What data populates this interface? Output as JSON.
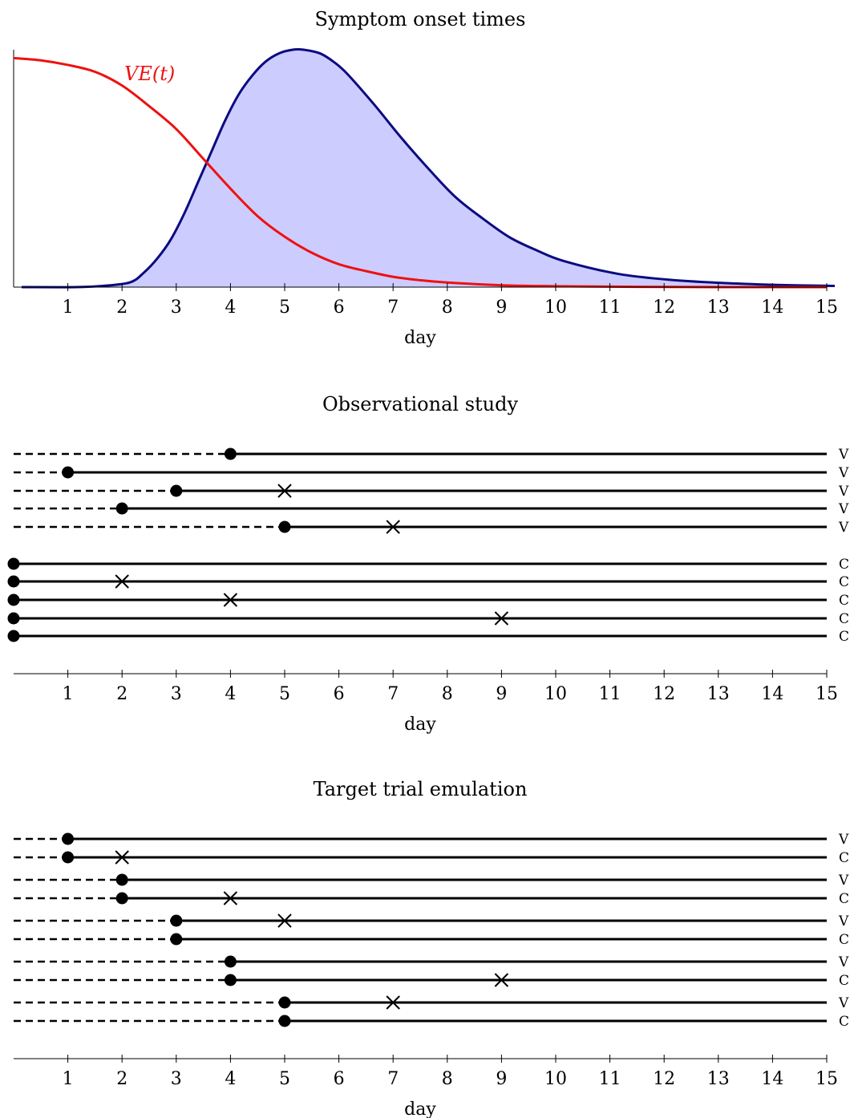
{
  "panels": [
    {
      "title": "Symptom onset times",
      "xlabel": "day",
      "ticks": [
        "1",
        "2",
        "3",
        "4",
        "5",
        "6",
        "7",
        "8",
        "9",
        "10",
        "11",
        "12",
        "13",
        "14",
        "15"
      ]
    },
    {
      "title": "Observational study",
      "xlabel": "day",
      "ticks": [
        "1",
        "2",
        "3",
        "4",
        "5",
        "6",
        "7",
        "8",
        "9",
        "10",
        "11",
        "12",
        "13",
        "14",
        "15"
      ]
    },
    {
      "title": "Target trial emulation",
      "xlabel": "day",
      "ticks": [
        "1",
        "2",
        "3",
        "4",
        "5",
        "6",
        "7",
        "8",
        "9",
        "10",
        "11",
        "12",
        "13",
        "14",
        "15"
      ]
    }
  ],
  "chart_data": [
    {
      "type": "area",
      "title": "Symptom onset times",
      "xlabel": "day",
      "xlim": [
        0,
        15
      ],
      "series": [
        {
          "name": "VE(t)",
          "color": "#ee1111",
          "x": [
            0,
            0.5,
            1,
            1.5,
            2,
            2.5,
            3,
            3.5,
            4,
            4.5,
            5,
            5.5,
            6,
            6.5,
            7,
            7.5,
            8,
            9,
            10,
            11,
            12,
            13,
            14,
            15
          ],
          "y": [
            1.0,
            0.99,
            0.97,
            0.94,
            0.88,
            0.79,
            0.69,
            0.56,
            0.43,
            0.31,
            0.22,
            0.15,
            0.1,
            0.07,
            0.045,
            0.03,
            0.02,
            0.008,
            0.004,
            0.002,
            0.001,
            0,
            0,
            0
          ]
        },
        {
          "name": "",
          "color": "#0b0b80",
          "fill": "#ccccff",
          "x": [
            0,
            1,
            1.5,
            2,
            2.25,
            2.5,
            2.75,
            3,
            3.25,
            3.5,
            3.75,
            4,
            4.25,
            4.5,
            4.75,
            5,
            5.2,
            5.5,
            5.75,
            6,
            6.5,
            7,
            7.5,
            8,
            8.5,
            9,
            9.5,
            10,
            11,
            12,
            13,
            14,
            15
          ],
          "y": [
            0,
            0,
            0.005,
            0.02,
            0.06,
            0.12,
            0.2,
            0.31,
            0.44,
            0.57,
            0.7,
            0.81,
            0.89,
            0.95,
            0.985,
            1.0,
            1.0,
            0.985,
            0.95,
            0.9,
            0.77,
            0.63,
            0.5,
            0.38,
            0.29,
            0.21,
            0.155,
            0.11,
            0.056,
            0.03,
            0.017,
            0.009,
            0.005
          ]
        }
      ]
    },
    {
      "type": "timeline",
      "title": "Observational study",
      "xlabel": "day",
      "xlim": [
        0,
        15
      ],
      "rows": [
        {
          "group": "V",
          "start": 4,
          "event": null
        },
        {
          "group": "V",
          "start": 1,
          "event": null
        },
        {
          "group": "V",
          "start": 3,
          "event": 5
        },
        {
          "group": "V",
          "start": 2,
          "event": null
        },
        {
          "group": "V",
          "start": 5,
          "event": 7
        },
        {
          "group": "C",
          "start": 0,
          "event": null
        },
        {
          "group": "C",
          "start": 0,
          "event": 2
        },
        {
          "group": "C",
          "start": 0,
          "event": 4
        },
        {
          "group": "C",
          "start": 0,
          "event": 9
        },
        {
          "group": "C",
          "start": 0,
          "event": null
        }
      ]
    },
    {
      "type": "timeline",
      "title": "Target trial emulation",
      "xlabel": "day",
      "xlim": [
        0,
        15
      ],
      "rows": [
        {
          "group": "V",
          "start": 1,
          "event": null
        },
        {
          "group": "C",
          "start": 1,
          "event": 2
        },
        {
          "group": "V",
          "start": 2,
          "event": null
        },
        {
          "group": "C",
          "start": 2,
          "event": 4
        },
        {
          "group": "V",
          "start": 3,
          "event": 5
        },
        {
          "group": "C",
          "start": 3,
          "event": null
        },
        {
          "group": "V",
          "start": 4,
          "event": null
        },
        {
          "group": "C",
          "start": 4,
          "event": 9
        },
        {
          "group": "V",
          "start": 5,
          "event": 7
        },
        {
          "group": "C",
          "start": 5,
          "event": null
        }
      ]
    }
  ]
}
